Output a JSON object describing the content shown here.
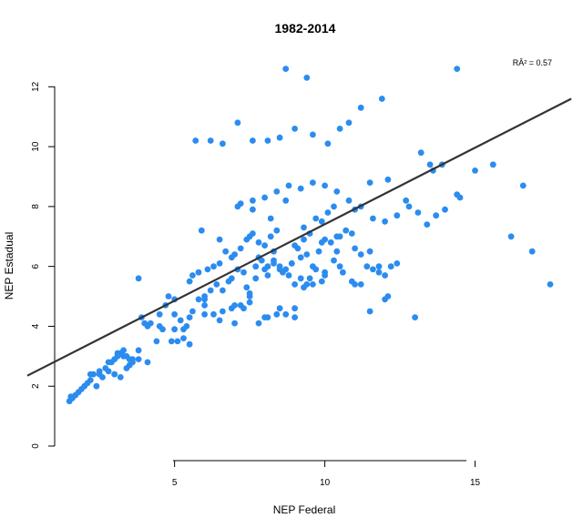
{
  "chart_data": {
    "type": "scatter",
    "title": "1982-2014",
    "xlabel": "NEP Federal",
    "ylabel": "NEP Estadual",
    "annotation": "RÂ² = 0.57",
    "xlim": [
      0.1,
      18.5
    ],
    "ylim": [
      0,
      12.8
    ],
    "x_ticks": [
      5,
      10,
      15
    ],
    "y_ticks": [
      0,
      2,
      4,
      6,
      8,
      10,
      12
    ],
    "grid": false,
    "point_color": "#2b8cf0",
    "fit_line_color": "#333333",
    "fit_line": {
      "x": [
        0.1,
        18.2
      ],
      "y": [
        2.35,
        11.6
      ]
    },
    "points": {
      "x": [
        1.5,
        1.6,
        1.7,
        1.55,
        1.8,
        1.9,
        2.0,
        2.1,
        2.2,
        2.5,
        2.7,
        2.9,
        3.0,
        3.1,
        3.2,
        3.3,
        3.4,
        3.5,
        3.6,
        3.8,
        2.4,
        2.6,
        2.8,
        3.0,
        3.2,
        3.4,
        3.6,
        2.3,
        2.5,
        2.8,
        3.1,
        3.3,
        3.5,
        3.8,
        4.1,
        3.0,
        2.2,
        3.9,
        4.1,
        4.2,
        4.5,
        4.7,
        4.8,
        5.0,
        5.2,
        5.4,
        5.6,
        5.8,
        6.0,
        6.2,
        6.4,
        4.4,
        4.6,
        5.0,
        5.3,
        5.5,
        5.8,
        6.1,
        6.3,
        4.9,
        5.1,
        5.3,
        5.5,
        6.5,
        6.7,
        6.9,
        7.0,
        7.2,
        7.4,
        7.5,
        7.6,
        7.8,
        8.0,
        8.2,
        8.4,
        6.8,
        7.1,
        7.3,
        7.7,
        7.9,
        8.1,
        8.3,
        8.5,
        8.7,
        8.9,
        9.0,
        9.2,
        9.4,
        9.6,
        9.8,
        10.0,
        10.2,
        10.4,
        10.5,
        10.7,
        10.9,
        11.0,
        11.2,
        11.4,
        11.6,
        11.8,
        12.0,
        12.2,
        12.4,
        6.6,
        6.9,
        7.1,
        7.4,
        7.7,
        8.0,
        8.3,
        8.6,
        8.9,
        9.1,
        9.3,
        9.5,
        9.7,
        9.9,
        10.1,
        10.3,
        6.0,
        6.3,
        6.6,
        6.9,
        7.2,
        7.5,
        7.8,
        8.1,
        8.4,
        8.7,
        9.0,
        9.3,
        9.6,
        9.9,
        7.2,
        7.6,
        8.0,
        8.4,
        8.8,
        9.2,
        9.6,
        10.0,
        10.4,
        10.8,
        11.2,
        11.6,
        12.0,
        12.4,
        12.8,
        13.1,
        13.4,
        13.7,
        14.0,
        14.5,
        15.0,
        16.2,
        16.6,
        16.9,
        17.5,
        15.6,
        14.4,
        13.9,
        13.5,
        13.6,
        13.2,
        12.7,
        12.1,
        11.5,
        11.0,
        10.4,
        9.9,
        9.3,
        8.7,
        8.2,
        7.6,
        7.1,
        6.5,
        5.9,
        8.7,
        9.4,
        14.4,
        11.9,
        11.2,
        10.8,
        10.5,
        10.1,
        9.6,
        9.0,
        8.5,
        8.1,
        7.6,
        7.1,
        6.6,
        6.2,
        5.7,
        3.8,
        5.6,
        6.0,
        7.0,
        7.3,
        7.5,
        7.8,
        8.1,
        8.3,
        8.5,
        8.8,
        9.0,
        9.2,
        9.4,
        9.7,
        10.0,
        10.3,
        10.6,
        10.9,
        11.2,
        11.5,
        11.8,
        12.1,
        4.0,
        4.5,
        5.0,
        5.5,
        6.0,
        6.5,
        7.0,
        7.5,
        8.0,
        8.5,
        9.0,
        9.5,
        10.0,
        10.5,
        11.0,
        11.5,
        12.0,
        13.0
      ],
      "y": [
        1.5,
        1.6,
        1.7,
        1.65,
        1.8,
        1.9,
        2.0,
        2.1,
        2.2,
        2.4,
        2.6,
        2.8,
        2.9,
        3.0,
        3.1,
        3.2,
        3.0,
        2.7,
        2.8,
        3.2,
        2.0,
        2.3,
        2.5,
        2.4,
        2.3,
        2.6,
        2.9,
        2.4,
        2.5,
        2.8,
        3.1,
        3.0,
        2.9,
        2.9,
        2.8,
        2.4,
        2.4,
        4.3,
        4.0,
        4.1,
        4.4,
        4.7,
        5.0,
        4.9,
        4.2,
        4.0,
        4.5,
        4.9,
        5.0,
        5.2,
        5.4,
        3.5,
        3.9,
        3.9,
        3.9,
        5.5,
        5.8,
        5.9,
        6.0,
        3.5,
        3.5,
        3.6,
        3.4,
        6.1,
        6.5,
        6.3,
        6.4,
        6.6,
        6.9,
        7.0,
        7.1,
        6.8,
        6.7,
        7.0,
        7.2,
        5.5,
        5.9,
        5.8,
        6.0,
        6.2,
        5.7,
        6.1,
        6.0,
        5.9,
        6.1,
        6.7,
        6.3,
        6.4,
        6.0,
        6.5,
        6.9,
        6.8,
        6.5,
        7.0,
        7.2,
        7.1,
        6.6,
        6.4,
        6.0,
        5.9,
        5.8,
        5.7,
        6.0,
        6.1,
        5.2,
        5.6,
        5.9,
        5.3,
        5.6,
        5.9,
        6.2,
        5.8,
        6.1,
        6.6,
        6.9,
        7.1,
        7.6,
        7.5,
        7.8,
        8.0,
        4.9,
        4.4,
        4.5,
        4.6,
        4.7,
        5.0,
        4.1,
        4.3,
        4.4,
        4.4,
        4.6,
        5.3,
        5.4,
        5.5,
        8.1,
        8.2,
        8.3,
        8.5,
        8.7,
        8.6,
        8.8,
        8.7,
        8.5,
        8.2,
        8.0,
        7.6,
        7.5,
        7.7,
        8.0,
        7.8,
        7.4,
        7.7,
        7.9,
        8.3,
        9.2,
        7.0,
        8.7,
        6.5,
        5.4,
        9.4,
        8.4,
        9.4,
        9.4,
        9.2,
        9.8,
        8.2,
        8.9,
        8.8,
        7.9,
        7.0,
        6.8,
        7.3,
        8.2,
        7.6,
        7.9,
        8.0,
        6.9,
        7.2,
        12.6,
        12.3,
        12.6,
        11.6,
        11.3,
        10.8,
        10.6,
        10.1,
        10.4,
        10.6,
        10.3,
        10.2,
        10.2,
        10.8,
        10.1,
        10.2,
        10.2,
        5.6,
        5.7,
        4.7,
        4.1,
        4.6,
        5.1,
        6.3,
        6.0,
        6.5,
        5.9,
        5.7,
        5.4,
        5.6,
        5.4,
        5.9,
        5.8,
        6.2,
        5.8,
        5.5,
        5.4,
        6.5,
        6.0,
        5.0,
        4.1,
        4.0,
        4.4,
        4.3,
        4.4,
        4.2,
        4.7,
        4.8,
        4.3,
        4.6,
        4.3,
        5.6,
        5.7,
        6.0,
        5.4,
        4.5,
        4.9,
        4.3
      ]
    }
  }
}
